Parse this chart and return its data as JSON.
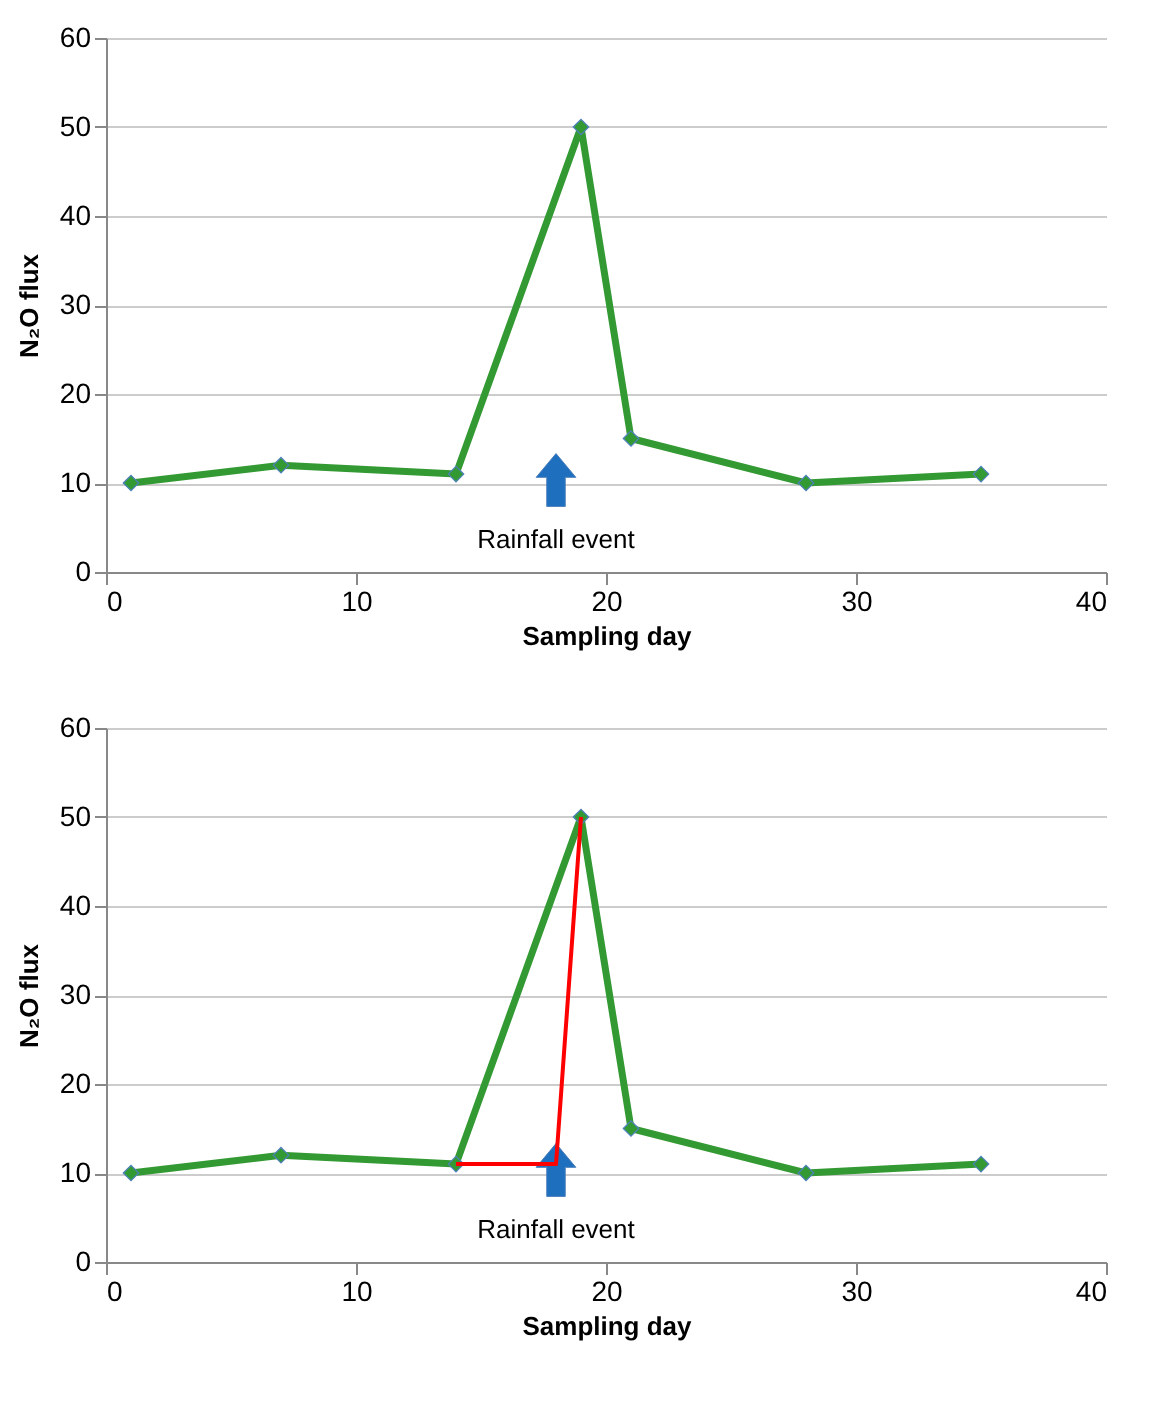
{
  "chart_data": [
    {
      "type": "line",
      "xlabel": "Sampling day",
      "ylabel": "N₂O flux",
      "xlim": [
        0,
        40
      ],
      "xticks": [
        0,
        10,
        20,
        30,
        40
      ],
      "ylim": [
        0,
        60
      ],
      "yticks": [
        0,
        10,
        20,
        30,
        40,
        50,
        60
      ],
      "grid": "y",
      "marker": "diamond",
      "line_style": "solid",
      "annotations": [
        "Rainfall event"
      ],
      "series": [
        {
          "color": "#339933",
          "x": [
            1,
            7,
            14,
            19,
            21,
            28,
            35
          ],
          "values": [
            10,
            12,
            11,
            50,
            15,
            10,
            11
          ]
        }
      ]
    },
    {
      "type": "line",
      "xlabel": "Sampling day",
      "ylabel": "N₂O flux",
      "xlim": [
        0,
        40
      ],
      "xticks": [
        0,
        10,
        20,
        30,
        40
      ],
      "ylim": [
        0,
        60
      ],
      "yticks": [
        0,
        10,
        20,
        30,
        40,
        50,
        60
      ],
      "grid": "y",
      "marker": "diamond",
      "line_style": "solid",
      "annotations": [
        "Rainfall event"
      ],
      "series": [
        {
          "color": "#339933",
          "x": [
            1,
            7,
            14,
            19,
            21,
            28,
            35
          ],
          "values": [
            10,
            12,
            11,
            50,
            15,
            10,
            11
          ]
        },
        {
          "color": "#ff0000",
          "x": [
            14,
            18,
            19
          ],
          "values": [
            11,
            11,
            50
          ],
          "marker": "none"
        }
      ]
    }
  ]
}
